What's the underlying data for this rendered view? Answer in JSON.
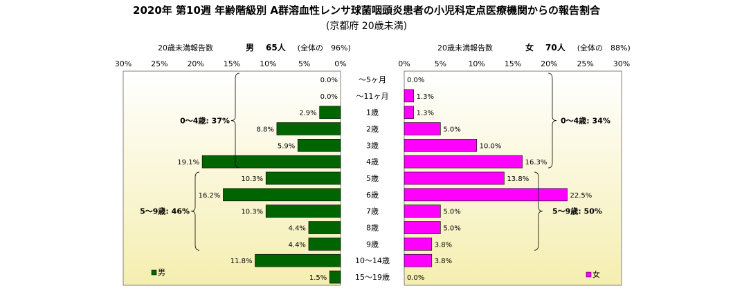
{
  "title": "2020年 第10週 年齢階級別 A群溶血性レンサ球菌咽頭炎患者の小児科定点医療機関からの報告割合",
  "subtitle": "(京都府 20歳未満)",
  "header_left": {
    "caption": "20歳未満報告数",
    "sex": "男",
    "count": "65人",
    "share": "(全体の　96%)"
  },
  "header_right": {
    "caption": "20歳未満報告数",
    "sex": "女",
    "count": "70人",
    "share": "(全体の　88%)"
  },
  "colors": {
    "male": "#006400",
    "female": "#ff00ff",
    "plot_bg_top": "#ffffff",
    "plot_bg_bottom": "#f5eeb0",
    "frame": "#808080"
  },
  "chart_data": {
    "type": "bar",
    "orientation": "horizontal-population-pyramid",
    "categories": [
      "～5ヶ月",
      "～11ヶ月",
      "1歳",
      "2歳",
      "3歳",
      "4歳",
      "5歳",
      "6歳",
      "7歳",
      "8歳",
      "9歳",
      "10～14歳",
      "15～19歳"
    ],
    "series": [
      {
        "name": "男",
        "values": [
          0.0,
          0.0,
          2.9,
          8.8,
          5.9,
          19.1,
          10.3,
          16.2,
          10.3,
          4.4,
          4.4,
          11.8,
          1.5
        ],
        "labels": [
          "0.0%",
          "0.0%",
          "2.9%",
          "8.8%",
          "5.9%",
          "19.1%",
          "10.3%",
          "16.2%",
          "10.3%",
          "4.4%",
          "4.4%",
          "11.8%",
          "1.5%"
        ]
      },
      {
        "name": "女",
        "values": [
          0.0,
          1.3,
          1.3,
          5.0,
          10.0,
          16.3,
          13.8,
          22.5,
          5.0,
          5.0,
          3.8,
          3.8,
          0.0
        ],
        "labels": [
          "0.0%",
          "1.3%",
          "1.3%",
          "5.0%",
          "10.0%",
          "16.3%",
          "13.8%",
          "22.5%",
          "5.0%",
          "5.0%",
          "3.8%",
          "3.8%",
          "0.0%"
        ]
      }
    ],
    "xlim": [
      0,
      30
    ],
    "ticks": [
      0,
      5,
      10,
      15,
      20,
      25,
      30
    ],
    "tick_labels": [
      "0%",
      "5%",
      "10%",
      "15%",
      "20%",
      "25%",
      "30%"
    ],
    "annotations": {
      "male_0_4": "0～4歳: 37%",
      "male_5_9": "5～9歳: 46%",
      "female_0_4": "0～4歳: 34%",
      "female_5_9": "5～9歳: 50%"
    },
    "legend_male": "男",
    "legend_female": "女",
    "grid": false
  }
}
